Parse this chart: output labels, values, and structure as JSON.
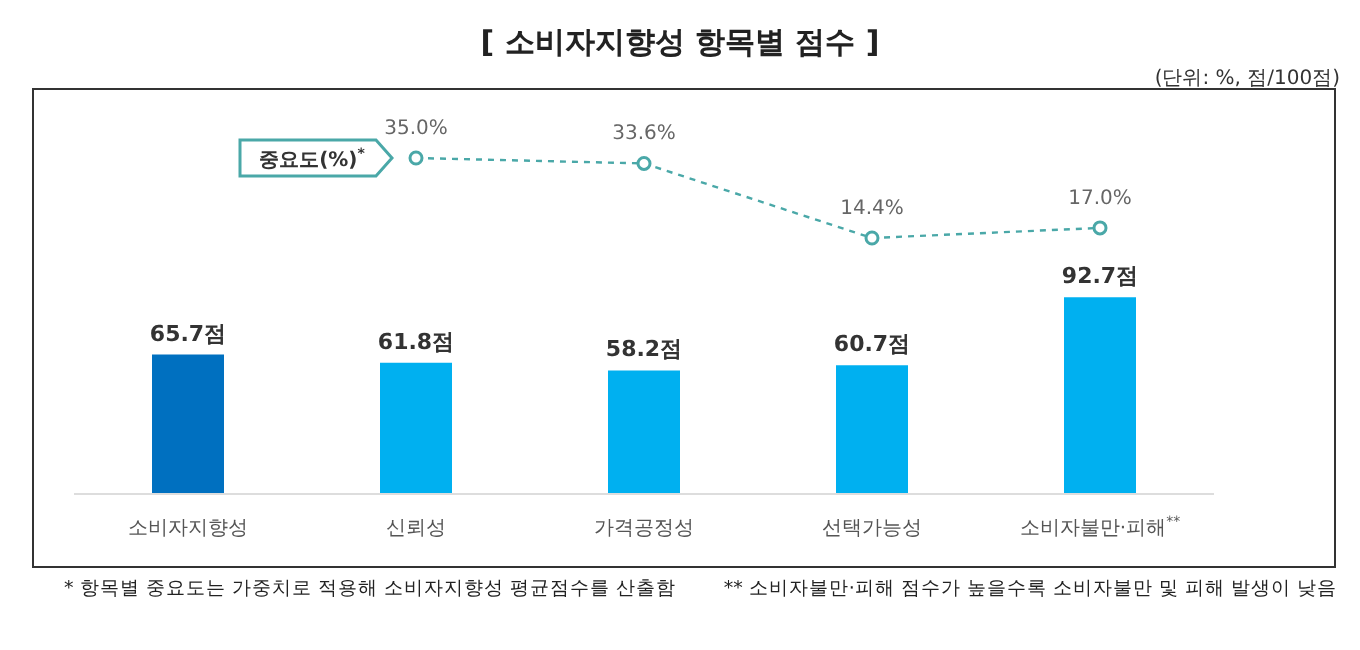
{
  "chart_data": [
    {
      "type": "bar",
      "categories": [
        "소비자지향성",
        "신뢰성",
        "가격공정성",
        "선택가능성",
        "소비자불만·피해$^{**}$"
      ],
      "series": [
        {
          "type": "bar",
          "colors": [
            "#0070c0",
            "#00b0f0",
            "#00b0f0",
            "#00b0f0",
            "#00b0f0"
          ],
          "values": [
            65.7,
            61.8,
            58.2,
            60.7,
            92.7
          ],
          "value_labels": [
            "65.7점",
            "61.8점",
            "58.2점",
            "60.7점",
            "92.7점"
          ]
        }
      ],
      "legend": false,
      "grid": false,
      "annotations": [
        "* 항목별 중요도는 가중치로 적용해 소비자지향성 평균점수를 산출함",
        "** 소비자불만·피해 점수가 높을수록 소비자불만 및 피해 발생이 낮음"
      ]
    },
    {
      "type": "line",
      "title": "[ 소비자지향성 항목별 점수 ]",
      "subtitle": "(단위: %, 점/100점)",
      "categories": [
        null,
        null,
        null,
        null,
        null
      ],
      "series": [
        {
          "name": "중요도(%)$^{*}$",
          "color": "#4aa8a8",
          "values": [
            null,
            35.0,
            33.6,
            14.4,
            17.0
          ],
          "value_labels": [
            null,
            "35.0%",
            "33.6%",
            "14.4%",
            "17.0%"
          ]
        }
      ],
      "marker": "circle",
      "line_style": "dashed",
      "legend": "top left",
      "grid": false
    }
  ]
}
